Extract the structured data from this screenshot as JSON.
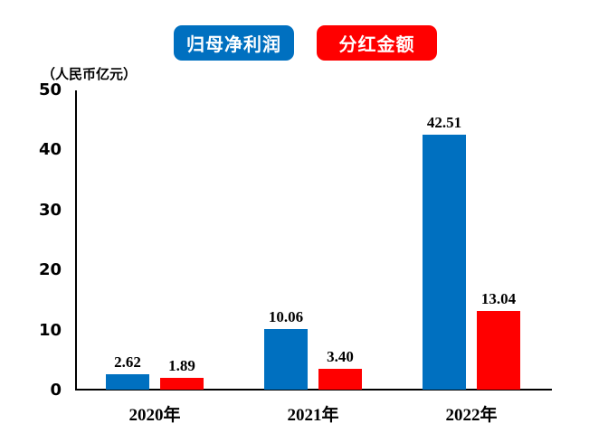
{
  "colors": {
    "net_profit_blue": "#0070C0",
    "dividend_red": "#FF0000",
    "axis": "#000000",
    "text": "#000000",
    "background": "#FFFFFF"
  },
  "legend": {
    "net_profit_label": "归母净利润",
    "dividend_label": "分红金额"
  },
  "unit_label": "（人民币亿元）",
  "chart_data": {
    "type": "bar",
    "title": "",
    "categories": [
      "2020年",
      "2021年",
      "2022年"
    ],
    "series": [
      {
        "name": "归母净利润",
        "color": "#0070C0",
        "values": [
          2.62,
          10.06,
          42.51
        ],
        "display": [
          "2.62",
          "10.06",
          "42.51"
        ]
      },
      {
        "name": "分红金额",
        "color": "#FF0000",
        "values": [
          1.89,
          3.4,
          13.04
        ],
        "display": [
          "1.89",
          "3.40",
          "13.04"
        ]
      }
    ],
    "xlabel": "",
    "ylabel": "（人民币亿元）",
    "ylim": [
      0,
      50
    ],
    "yticks": [
      0,
      10,
      20,
      30,
      40,
      50
    ],
    "grid": false,
    "legend_position": "top",
    "value_labels_shown": true
  }
}
